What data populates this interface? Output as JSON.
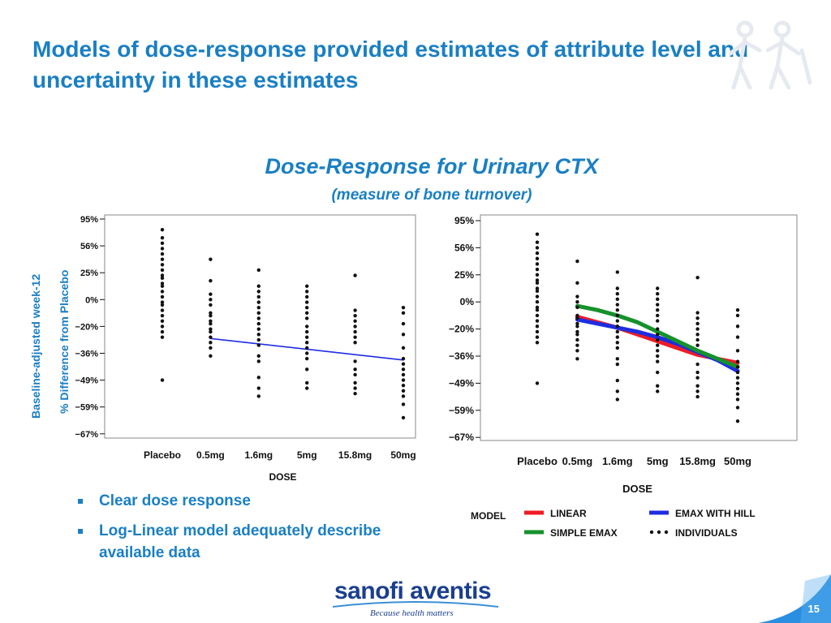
{
  "slide": {
    "title": "Models of dose-response provided estimates of attribute level and uncertainty in these estimates",
    "subtitle_main": "Dose-Response for Urinary CTX",
    "subtitle_sub": "(measure of bone turnover)",
    "ylabel_line1": "Baseline-adjusted week-12",
    "ylabel_line2": "% Difference from Placebo",
    "bullets": [
      "Clear dose response",
      "Log-Linear model adequately describe available data"
    ],
    "page_number": "15",
    "logo_text_sanofi": "sanofi",
    "logo_text_aventis": "aventis",
    "logo_tagline": "Because health matters"
  },
  "legend": {
    "header": "MODEL",
    "items": [
      {
        "label": "LINEAR",
        "color": "#ee1c25",
        "type": "line"
      },
      {
        "label": "EMAX  WITH  HILL",
        "color": "#1f2de0",
        "type": "line"
      },
      {
        "label": "SIMPLE  EMAX",
        "color": "#16912b",
        "type": "line"
      },
      {
        "label": "INDIVIDUALS",
        "color": "#111111",
        "type": "dots"
      }
    ]
  },
  "chart_data": [
    {
      "type": "scatter",
      "title": "",
      "xlabel": "DOSE",
      "ylabel": "",
      "categories": [
        "Placebo",
        "0.5mg",
        "1.6mg",
        "5mg",
        "15.8mg",
        "50mg"
      ],
      "x_positions": [
        0,
        1,
        2,
        3,
        4,
        5
      ],
      "yticks": [
        "95%",
        "56%",
        "25%",
        "0%",
        "−20%",
        "−36%",
        "−49%",
        "−59%",
        "−67%"
      ],
      "individuals": [
        {
          "category": "Placebo",
          "y_tick_index": [
            0.4,
            0.7,
            0.9,
            1.1,
            1.3,
            1.5,
            1.7,
            1.9,
            2.1,
            2.2,
            2.4,
            2.5,
            2.7,
            2.9,
            3.1,
            3.2,
            3.4,
            3.6,
            3.8,
            4.0,
            4.2,
            4.4,
            6.0
          ]
        },
        {
          "category": "0.5mg",
          "y_tick_index": [
            1.5,
            2.3,
            2.8,
            3.0,
            3.2,
            3.5,
            3.6,
            3.8,
            3.9,
            4.1,
            4.2,
            4.4,
            4.6,
            4.8,
            5.1
          ]
        },
        {
          "category": "1.6mg",
          "y_tick_index": [
            1.9,
            2.5,
            2.7,
            2.9,
            3.1,
            3.3,
            3.5,
            3.7,
            3.9,
            4.1,
            4.3,
            4.5,
            4.7,
            5.1,
            5.3,
            5.9,
            6.3,
            6.6
          ]
        },
        {
          "category": "5mg",
          "y_tick_index": [
            2.5,
            2.7,
            2.9,
            3.1,
            3.3,
            3.5,
            3.7,
            4.0,
            4.2,
            4.4,
            4.6,
            4.8,
            5.0,
            5.2,
            5.6,
            6.1,
            6.3
          ]
        },
        {
          "category": "15.8mg",
          "y_tick_index": [
            2.1,
            3.4,
            3.6,
            3.8,
            4.0,
            4.2,
            4.4,
            4.6,
            5.3,
            5.6,
            5.8,
            6.1,
            6.3,
            6.5
          ]
        },
        {
          "category": "50mg",
          "y_tick_index": [
            3.3,
            3.5,
            3.9,
            4.3,
            4.8,
            5.2,
            5.4,
            5.6,
            5.8,
            6.0,
            6.2,
            6.4,
            6.6,
            6.9,
            7.4
          ]
        }
      ],
      "series": [
        {
          "name": "",
          "color": "#1f2de0",
          "x": [
            1,
            5
          ],
          "y_tick_index": [
            4.45,
            5.25
          ]
        }
      ]
    },
    {
      "type": "scatter",
      "title": "",
      "xlabel": "DOSE",
      "ylabel": "",
      "categories": [
        "Placebo",
        "0.5mg",
        "1.6mg",
        "5mg",
        "15.8mg",
        "50mg"
      ],
      "x_positions": [
        0,
        1,
        2,
        3,
        4,
        5
      ],
      "yticks": [
        "95%",
        "56%",
        "25%",
        "0%",
        "−20%",
        "−36%",
        "−49%",
        "−59%",
        "−67%"
      ],
      "individuals": [
        {
          "category": "Placebo",
          "y_tick_index": [
            0.5,
            0.8,
            1.0,
            1.2,
            1.4,
            1.6,
            1.8,
            2.0,
            2.2,
            2.3,
            2.5,
            2.6,
            2.8,
            3.0,
            3.2,
            3.3,
            3.5,
            3.7,
            3.9,
            4.1,
            4.3,
            4.5,
            6.0
          ]
        },
        {
          "category": "0.5mg",
          "y_tick_index": [
            1.5,
            2.3,
            2.8,
            3.0,
            3.2,
            3.5,
            3.6,
            3.8,
            3.9,
            4.1,
            4.2,
            4.4,
            4.6,
            4.8,
            5.1
          ]
        },
        {
          "category": "1.6mg",
          "y_tick_index": [
            1.9,
            2.5,
            2.7,
            2.9,
            3.1,
            3.3,
            3.5,
            3.7,
            3.9,
            4.1,
            4.3,
            4.5,
            4.7,
            5.1,
            5.3,
            5.9,
            6.3,
            6.6
          ]
        },
        {
          "category": "5mg",
          "y_tick_index": [
            2.5,
            2.7,
            2.9,
            3.1,
            3.3,
            3.5,
            3.7,
            4.0,
            4.2,
            4.4,
            4.6,
            4.8,
            5.0,
            5.2,
            5.6,
            6.1,
            6.3
          ]
        },
        {
          "category": "15.8mg",
          "y_tick_index": [
            2.1,
            3.4,
            3.6,
            3.8,
            4.0,
            4.2,
            4.4,
            4.6,
            5.3,
            5.6,
            5.8,
            6.1,
            6.3,
            6.5
          ]
        },
        {
          "category": "50mg",
          "y_tick_index": [
            3.3,
            3.5,
            3.9,
            4.3,
            4.8,
            5.2,
            5.4,
            5.6,
            5.8,
            6.0,
            6.2,
            6.4,
            6.6,
            6.9,
            7.4
          ]
        }
      ],
      "series": [
        {
          "name": "LINEAR",
          "color": "#ee1c25",
          "x": [
            1,
            1.5,
            2,
            2.5,
            3,
            3.5,
            4,
            4.5,
            5
          ],
          "y_tick_index": [
            3.55,
            3.75,
            3.95,
            4.2,
            4.45,
            4.7,
            4.95,
            5.1,
            5.25
          ]
        },
        {
          "name": "EMAX  WITH  HILL",
          "color": "#1f2de0",
          "x": [
            1,
            1.5,
            2,
            2.5,
            3,
            3.5,
            4,
            4.5,
            5
          ],
          "y_tick_index": [
            3.65,
            3.8,
            3.95,
            4.1,
            4.3,
            4.55,
            4.85,
            5.15,
            5.55
          ]
        },
        {
          "name": "SIMPLE  EMAX",
          "color": "#16912b",
          "x": [
            1,
            1.5,
            2,
            2.5,
            3,
            3.5,
            4,
            4.5,
            5
          ],
          "y_tick_index": [
            3.15,
            3.3,
            3.5,
            3.75,
            4.1,
            4.45,
            4.8,
            5.1,
            5.4
          ]
        }
      ]
    }
  ]
}
